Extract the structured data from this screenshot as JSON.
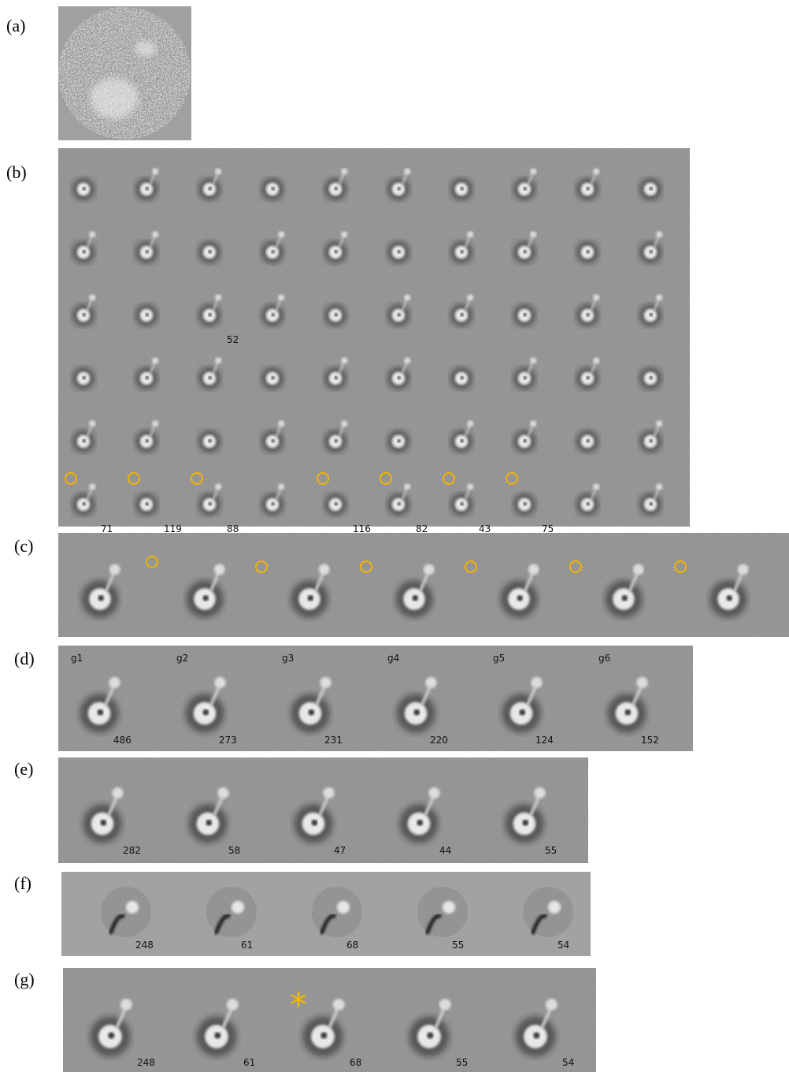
{
  "panels": [
    {
      "label": "(a)"
    },
    {
      "label": "(b)",
      "rows": [
        [
          null,
          null,
          null,
          null,
          null,
          null,
          null,
          null,
          null,
          null
        ],
        [
          null,
          null,
          null,
          null,
          null,
          null,
          null,
          null,
          null,
          null
        ],
        [
          null,
          null,
          52,
          null,
          null,
          null,
          null,
          null,
          null,
          null
        ],
        [
          null,
          null,
          null,
          null,
          null,
          null,
          null,
          null,
          null,
          null
        ],
        [
          null,
          null,
          null,
          null,
          null,
          null,
          null,
          null,
          null,
          null
        ],
        [
          71,
          119,
          88,
          null,
          116,
          82,
          43,
          75,
          null,
          null
        ]
      ]
    },
    {
      "label": "(c)"
    },
    {
      "label": "(d)",
      "cells": [
        {
          "name": "g1",
          "count": 486
        },
        {
          "name": "g2",
          "count": 273
        },
        {
          "name": "g3",
          "count": 231
        },
        {
          "name": "g4",
          "count": 220
        },
        {
          "name": "g5",
          "count": 124
        },
        {
          "name": "g6",
          "count": 152
        }
      ]
    },
    {
      "label": "(e)",
      "counts": [
        282,
        58,
        47,
        44,
        55
      ]
    },
    {
      "label": "(f)",
      "counts": [
        248,
        61,
        68,
        55,
        54
      ]
    },
    {
      "label": "(g)",
      "counts": [
        248,
        61,
        68,
        55,
        54
      ],
      "mark": "*"
    }
  ]
}
